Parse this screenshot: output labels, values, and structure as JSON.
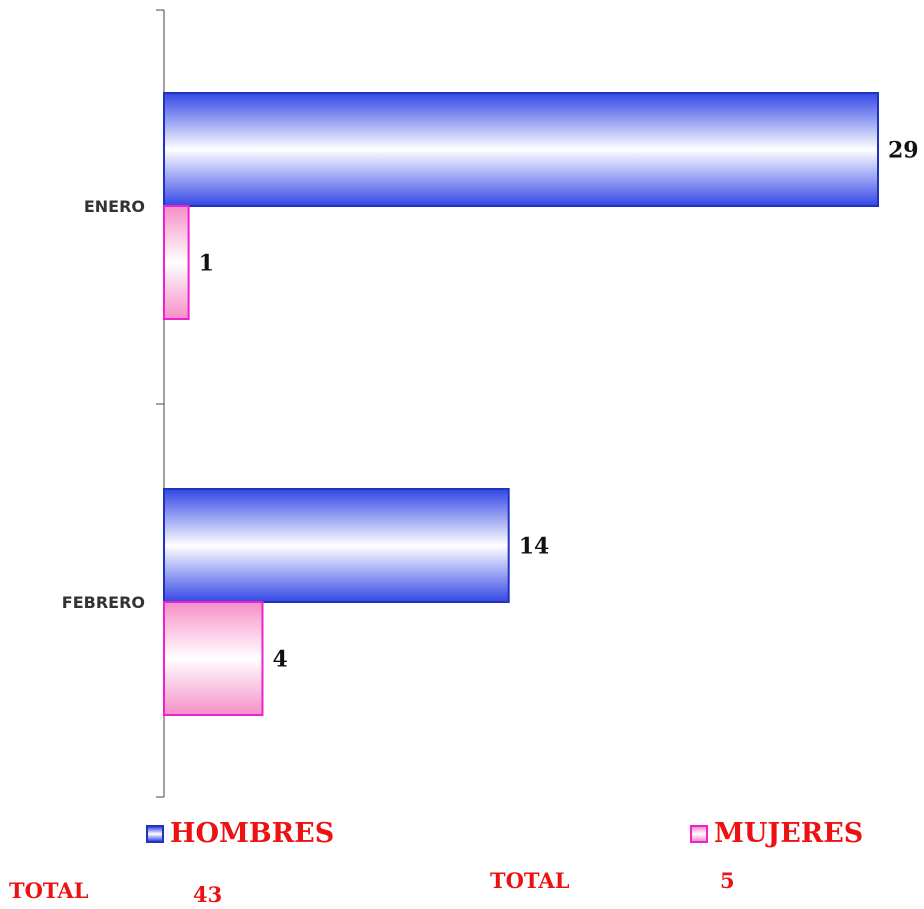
{
  "chart_data": {
    "type": "bar",
    "orientation": "horizontal",
    "categories": [
      "ENERO",
      "FEBRERO"
    ],
    "series": [
      {
        "name": "HOMBRES",
        "values": [
          29,
          14
        ],
        "color": "#2233bb",
        "fill_light": "#ffffff",
        "fill_dark": "#3347e6"
      },
      {
        "name": "MUJERES",
        "values": [
          1,
          4
        ],
        "color": "#ee22cc",
        "fill_light": "#ffffff",
        "fill_dark": "#f58fc7"
      }
    ],
    "data_labels": true,
    "xlim": [
      0,
      29
    ],
    "grid": false,
    "legend": "bottom"
  },
  "legend": {
    "items": [
      {
        "label": "HOMBRES",
        "text_color": "#ee1111"
      },
      {
        "label": "MUJERES",
        "text_color": "#ee1111"
      }
    ]
  },
  "totals": [
    {
      "label": "TOTAL",
      "value": "43",
      "color": "#ee1111"
    },
    {
      "label": "TOTAL",
      "value": "5",
      "color": "#ee1111"
    }
  ]
}
